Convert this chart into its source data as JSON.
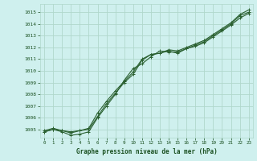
{
  "xlabel": "Graphe pression niveau de la mer (hPa)",
  "xlim": [
    -0.5,
    23.5
  ],
  "ylim": [
    1004.3,
    1015.7
  ],
  "yticks": [
    1005,
    1006,
    1007,
    1008,
    1009,
    1010,
    1011,
    1012,
    1013,
    1014,
    1015
  ],
  "xticks": [
    0,
    1,
    2,
    3,
    4,
    5,
    6,
    7,
    8,
    9,
    10,
    11,
    12,
    13,
    14,
    15,
    16,
    17,
    18,
    19,
    20,
    21,
    22,
    23
  ],
  "bg_color": "#cff0ee",
  "grid_color": "#b0d8cc",
  "line_color": "#2a6030",
  "label_color": "#1a5020",
  "series": [
    [
      1004.8,
      1005.0,
      1004.9,
      1004.8,
      1004.9,
      1005.0,
      1006.1,
      1007.2,
      1008.1,
      1009.0,
      1009.7,
      1010.9,
      1011.4,
      1011.5,
      1011.7,
      1011.5,
      1011.9,
      1012.2,
      1012.5,
      1013.0,
      1013.5,
      1014.0,
      1014.7,
      1015.0
    ],
    [
      1004.8,
      1005.0,
      1004.8,
      1004.5,
      1004.6,
      1004.8,
      1006.0,
      1007.0,
      1008.0,
      1009.2,
      1010.2,
      1010.6,
      1011.2,
      1011.7,
      1011.6,
      1011.6,
      1011.9,
      1012.1,
      1012.4,
      1012.9,
      1013.4,
      1013.9,
      1014.5,
      1014.9
    ],
    [
      1004.9,
      1005.1,
      1004.9,
      1004.7,
      1004.9,
      1005.1,
      1006.4,
      1007.4,
      1008.3,
      1009.1,
      1009.9,
      1011.0,
      1011.4,
      1011.5,
      1011.8,
      1011.7,
      1012.0,
      1012.3,
      1012.6,
      1013.1,
      1013.6,
      1014.1,
      1014.8,
      1015.2
    ]
  ]
}
